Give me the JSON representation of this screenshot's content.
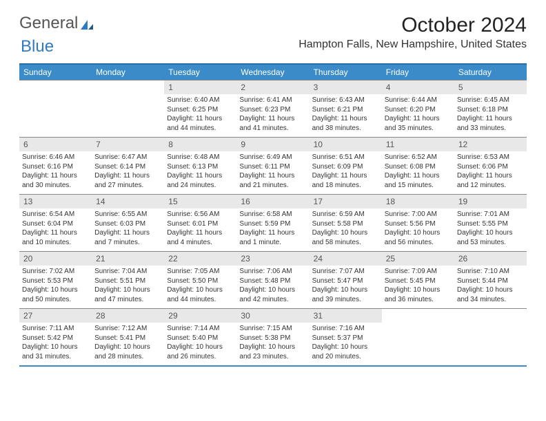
{
  "logo": {
    "text1": "General",
    "text2": "Blue"
  },
  "title": "October 2024",
  "location": "Hampton Falls, New Hampshire, United States",
  "colors": {
    "header_bg": "#3b8bc8",
    "header_border": "#2a6da0",
    "daynum_bg": "#e8e8e8",
    "row_border": "#888888",
    "bottom_border": "#3b8bc8",
    "logo_blue": "#2f7bbf"
  },
  "weekdays": [
    "Sunday",
    "Monday",
    "Tuesday",
    "Wednesday",
    "Thursday",
    "Friday",
    "Saturday"
  ],
  "weeks": [
    [
      {},
      {},
      {
        "num": "1",
        "sunrise": "Sunrise: 6:40 AM",
        "sunset": "Sunset: 6:25 PM",
        "daylight": "Daylight: 11 hours and 44 minutes."
      },
      {
        "num": "2",
        "sunrise": "Sunrise: 6:41 AM",
        "sunset": "Sunset: 6:23 PM",
        "daylight": "Daylight: 11 hours and 41 minutes."
      },
      {
        "num": "3",
        "sunrise": "Sunrise: 6:43 AM",
        "sunset": "Sunset: 6:21 PM",
        "daylight": "Daylight: 11 hours and 38 minutes."
      },
      {
        "num": "4",
        "sunrise": "Sunrise: 6:44 AM",
        "sunset": "Sunset: 6:20 PM",
        "daylight": "Daylight: 11 hours and 35 minutes."
      },
      {
        "num": "5",
        "sunrise": "Sunrise: 6:45 AM",
        "sunset": "Sunset: 6:18 PM",
        "daylight": "Daylight: 11 hours and 33 minutes."
      }
    ],
    [
      {
        "num": "6",
        "sunrise": "Sunrise: 6:46 AM",
        "sunset": "Sunset: 6:16 PM",
        "daylight": "Daylight: 11 hours and 30 minutes."
      },
      {
        "num": "7",
        "sunrise": "Sunrise: 6:47 AM",
        "sunset": "Sunset: 6:14 PM",
        "daylight": "Daylight: 11 hours and 27 minutes."
      },
      {
        "num": "8",
        "sunrise": "Sunrise: 6:48 AM",
        "sunset": "Sunset: 6:13 PM",
        "daylight": "Daylight: 11 hours and 24 minutes."
      },
      {
        "num": "9",
        "sunrise": "Sunrise: 6:49 AM",
        "sunset": "Sunset: 6:11 PM",
        "daylight": "Daylight: 11 hours and 21 minutes."
      },
      {
        "num": "10",
        "sunrise": "Sunrise: 6:51 AM",
        "sunset": "Sunset: 6:09 PM",
        "daylight": "Daylight: 11 hours and 18 minutes."
      },
      {
        "num": "11",
        "sunrise": "Sunrise: 6:52 AM",
        "sunset": "Sunset: 6:08 PM",
        "daylight": "Daylight: 11 hours and 15 minutes."
      },
      {
        "num": "12",
        "sunrise": "Sunrise: 6:53 AM",
        "sunset": "Sunset: 6:06 PM",
        "daylight": "Daylight: 11 hours and 12 minutes."
      }
    ],
    [
      {
        "num": "13",
        "sunrise": "Sunrise: 6:54 AM",
        "sunset": "Sunset: 6:04 PM",
        "daylight": "Daylight: 11 hours and 10 minutes."
      },
      {
        "num": "14",
        "sunrise": "Sunrise: 6:55 AM",
        "sunset": "Sunset: 6:03 PM",
        "daylight": "Daylight: 11 hours and 7 minutes."
      },
      {
        "num": "15",
        "sunrise": "Sunrise: 6:56 AM",
        "sunset": "Sunset: 6:01 PM",
        "daylight": "Daylight: 11 hours and 4 minutes."
      },
      {
        "num": "16",
        "sunrise": "Sunrise: 6:58 AM",
        "sunset": "Sunset: 5:59 PM",
        "daylight": "Daylight: 11 hours and 1 minute."
      },
      {
        "num": "17",
        "sunrise": "Sunrise: 6:59 AM",
        "sunset": "Sunset: 5:58 PM",
        "daylight": "Daylight: 10 hours and 58 minutes."
      },
      {
        "num": "18",
        "sunrise": "Sunrise: 7:00 AM",
        "sunset": "Sunset: 5:56 PM",
        "daylight": "Daylight: 10 hours and 56 minutes."
      },
      {
        "num": "19",
        "sunrise": "Sunrise: 7:01 AM",
        "sunset": "Sunset: 5:55 PM",
        "daylight": "Daylight: 10 hours and 53 minutes."
      }
    ],
    [
      {
        "num": "20",
        "sunrise": "Sunrise: 7:02 AM",
        "sunset": "Sunset: 5:53 PM",
        "daylight": "Daylight: 10 hours and 50 minutes."
      },
      {
        "num": "21",
        "sunrise": "Sunrise: 7:04 AM",
        "sunset": "Sunset: 5:51 PM",
        "daylight": "Daylight: 10 hours and 47 minutes."
      },
      {
        "num": "22",
        "sunrise": "Sunrise: 7:05 AM",
        "sunset": "Sunset: 5:50 PM",
        "daylight": "Daylight: 10 hours and 44 minutes."
      },
      {
        "num": "23",
        "sunrise": "Sunrise: 7:06 AM",
        "sunset": "Sunset: 5:48 PM",
        "daylight": "Daylight: 10 hours and 42 minutes."
      },
      {
        "num": "24",
        "sunrise": "Sunrise: 7:07 AM",
        "sunset": "Sunset: 5:47 PM",
        "daylight": "Daylight: 10 hours and 39 minutes."
      },
      {
        "num": "25",
        "sunrise": "Sunrise: 7:09 AM",
        "sunset": "Sunset: 5:45 PM",
        "daylight": "Daylight: 10 hours and 36 minutes."
      },
      {
        "num": "26",
        "sunrise": "Sunrise: 7:10 AM",
        "sunset": "Sunset: 5:44 PM",
        "daylight": "Daylight: 10 hours and 34 minutes."
      }
    ],
    [
      {
        "num": "27",
        "sunrise": "Sunrise: 7:11 AM",
        "sunset": "Sunset: 5:42 PM",
        "daylight": "Daylight: 10 hours and 31 minutes."
      },
      {
        "num": "28",
        "sunrise": "Sunrise: 7:12 AM",
        "sunset": "Sunset: 5:41 PM",
        "daylight": "Daylight: 10 hours and 28 minutes."
      },
      {
        "num": "29",
        "sunrise": "Sunrise: 7:14 AM",
        "sunset": "Sunset: 5:40 PM",
        "daylight": "Daylight: 10 hours and 26 minutes."
      },
      {
        "num": "30",
        "sunrise": "Sunrise: 7:15 AM",
        "sunset": "Sunset: 5:38 PM",
        "daylight": "Daylight: 10 hours and 23 minutes."
      },
      {
        "num": "31",
        "sunrise": "Sunrise: 7:16 AM",
        "sunset": "Sunset: 5:37 PM",
        "daylight": "Daylight: 10 hours and 20 minutes."
      },
      {},
      {}
    ]
  ]
}
